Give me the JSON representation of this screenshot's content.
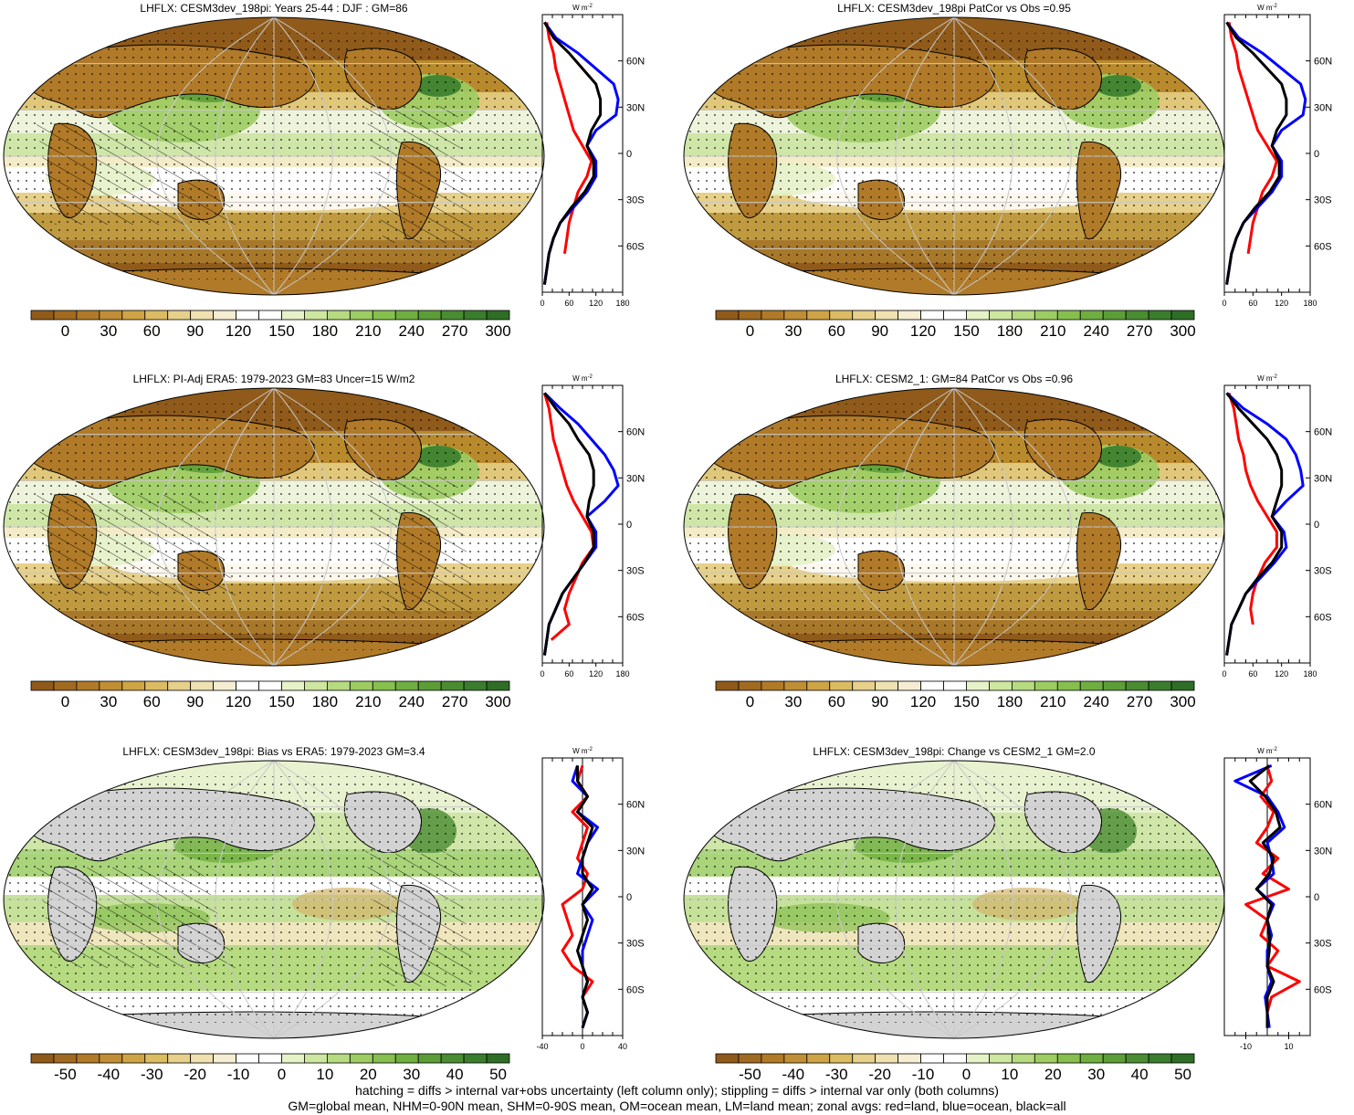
{
  "colors": {
    "brown_dark": "#8f5a1a",
    "brown_mid": "#b98a2c",
    "tan_light": "#eadca0",
    "white": "#ffffff",
    "green_light": "#b9df7e",
    "green_mid": "#7fbd45",
    "green_dark": "#2e7d2a",
    "land_gray": "#d3d3d3",
    "land_line": "red",
    "ocean_line": "blue",
    "all_line": "black"
  },
  "lat_labels": [
    "60N",
    "30N",
    "0",
    "30S",
    "60S"
  ],
  "unit_label": "W m",
  "unit_exp": "-2",
  "panels": [
    {
      "id": "model",
      "title": "LHFLX: CESM3dev_198pi: Years 25-44 : DJF : GM=86",
      "kind": "abs",
      "hatched": true,
      "colorbar_ticks": [
        "0",
        "30",
        "60",
        "90",
        "120",
        "150",
        "180",
        "210",
        "240",
        "270",
        "300"
      ],
      "zonal_ticks": [
        "0",
        "60",
        "120",
        "180"
      ]
    },
    {
      "id": "model-patcor",
      "title": "LHFLX: CESM3dev_198pi PatCor vs Obs =0.95",
      "kind": "abs",
      "hatched": false,
      "colorbar_ticks": [
        "0",
        "30",
        "60",
        "90",
        "120",
        "150",
        "180",
        "210",
        "240",
        "270",
        "300"
      ],
      "zonal_ticks": [
        "0",
        "60",
        "120",
        "180"
      ]
    },
    {
      "id": "obs",
      "title": "LHFLX: PI-Adj ERA5: 1979-2023 GM=83 Uncer=15 W/m2",
      "kind": "abs",
      "hatched": true,
      "colorbar_ticks": [
        "0",
        "30",
        "60",
        "90",
        "120",
        "150",
        "180",
        "210",
        "240",
        "270",
        "300"
      ],
      "zonal_ticks": [
        "0",
        "60",
        "120",
        "180"
      ]
    },
    {
      "id": "cesm2",
      "title": "LHFLX: CESM2_1: GM=84 PatCor vs Obs =0.96",
      "kind": "abs",
      "hatched": false,
      "colorbar_ticks": [
        "0",
        "30",
        "60",
        "90",
        "120",
        "150",
        "180",
        "210",
        "240",
        "270",
        "300"
      ],
      "zonal_ticks": [
        "0",
        "60",
        "120",
        "180"
      ]
    },
    {
      "id": "bias",
      "title": "LHFLX: CESM3dev_198pi: Bias vs ERA5: 1979-2023 GM=3.4",
      "kind": "diff",
      "hatched": true,
      "colorbar_ticks": [
        "-50",
        "-40",
        "-30",
        "-20",
        "-10",
        "0",
        "10",
        "20",
        "30",
        "40",
        "50"
      ],
      "zonal_ticks": [
        "-40",
        "0",
        "40"
      ]
    },
    {
      "id": "change",
      "title": "LHFLX: CESM3dev_198pi: Change vs CESM2_1 GM=2.0",
      "kind": "diff",
      "hatched": false,
      "colorbar_ticks": [
        "-50",
        "-40",
        "-30",
        "-20",
        "-10",
        "0",
        "10",
        "20",
        "30",
        "40",
        "50"
      ],
      "zonal_ticks": [
        "-10",
        "10"
      ]
    }
  ],
  "chart_data": [
    {
      "type": "line",
      "panel": "model",
      "xlim": [
        0,
        180
      ],
      "y_lat": [
        85,
        75,
        65,
        55,
        45,
        35,
        25,
        15,
        5,
        -5,
        -15,
        -25,
        -35,
        -45,
        -55,
        -65,
        -75,
        -85
      ],
      "series": [
        {
          "color": "red",
          "values": [
            10,
            15,
            25,
            30,
            40,
            50,
            60,
            70,
            90,
            110,
            100,
            80,
            70,
            60,
            55,
            50,
            null,
            null
          ]
        },
        {
          "color": "blue",
          "values": [
            5,
            30,
            80,
            120,
            160,
            170,
            165,
            120,
            100,
            120,
            120,
            100,
            70,
            40,
            25,
            15,
            10,
            5
          ]
        },
        {
          "color": "black",
          "values": [
            5,
            25,
            60,
            90,
            120,
            130,
            130,
            110,
            100,
            115,
            115,
            95,
            65,
            40,
            25,
            15,
            10,
            5
          ]
        }
      ]
    },
    {
      "type": "line",
      "panel": "model-patcor",
      "xlim": [
        0,
        180
      ],
      "y_lat": [
        85,
        75,
        65,
        55,
        45,
        35,
        25,
        15,
        5,
        -5,
        -15,
        -25,
        -35,
        -45,
        -55,
        -65,
        -75,
        -85
      ],
      "series": [
        {
          "color": "red",
          "values": [
            10,
            15,
            25,
            30,
            40,
            50,
            60,
            70,
            90,
            110,
            100,
            80,
            70,
            60,
            55,
            50,
            null,
            null
          ]
        },
        {
          "color": "blue",
          "values": [
            5,
            30,
            80,
            120,
            160,
            170,
            165,
            120,
            100,
            120,
            120,
            100,
            70,
            40,
            25,
            15,
            10,
            5
          ]
        },
        {
          "color": "black",
          "values": [
            5,
            25,
            60,
            90,
            120,
            130,
            130,
            110,
            100,
            115,
            115,
            95,
            65,
            40,
            25,
            15,
            10,
            5
          ]
        }
      ]
    },
    {
      "type": "line",
      "panel": "obs",
      "xlim": [
        0,
        180
      ],
      "y_lat": [
        85,
        75,
        65,
        55,
        45,
        35,
        25,
        15,
        5,
        -5,
        -15,
        -25,
        -35,
        -45,
        -55,
        -65,
        -75,
        -85
      ],
      "series": [
        {
          "color": "red",
          "values": [
            5,
            15,
            20,
            25,
            35,
            45,
            55,
            70,
            90,
            110,
            115,
            90,
            75,
            60,
            50,
            60,
            20,
            null
          ]
        },
        {
          "color": "blue",
          "values": [
            5,
            40,
            80,
            110,
            140,
            160,
            170,
            140,
            100,
            120,
            120,
            95,
            70,
            45,
            30,
            15,
            10,
            5
          ]
        },
        {
          "color": "black",
          "values": [
            5,
            30,
            60,
            80,
            105,
            115,
            115,
            105,
            100,
            115,
            115,
            95,
            70,
            45,
            30,
            15,
            10,
            5
          ]
        }
      ]
    },
    {
      "type": "line",
      "panel": "cesm2",
      "xlim": [
        0,
        180
      ],
      "y_lat": [
        85,
        75,
        65,
        55,
        45,
        35,
        25,
        15,
        5,
        -5,
        -15,
        -25,
        -35,
        -45,
        -55,
        -65,
        -75,
        -85
      ],
      "series": [
        {
          "color": "red",
          "values": [
            10,
            20,
            25,
            30,
            40,
            45,
            55,
            70,
            90,
            110,
            110,
            85,
            70,
            60,
            55,
            60,
            null,
            null
          ]
        },
        {
          "color": "blue",
          "values": [
            5,
            40,
            90,
            130,
            150,
            160,
            165,
            130,
            100,
            125,
            130,
            105,
            75,
            45,
            30,
            15,
            10,
            5
          ]
        },
        {
          "color": "black",
          "values": [
            5,
            30,
            60,
            90,
            110,
            120,
            120,
            110,
            100,
            120,
            120,
            100,
            70,
            45,
            30,
            15,
            10,
            5
          ]
        }
      ]
    },
    {
      "type": "line",
      "panel": "bias",
      "xlim": [
        -40,
        40
      ],
      "y_lat": [
        85,
        75,
        65,
        55,
        45,
        35,
        25,
        15,
        5,
        -5,
        -15,
        -25,
        -35,
        -45,
        -55,
        -65,
        -75,
        -85
      ],
      "series": [
        {
          "color": "red",
          "values": [
            0,
            -5,
            5,
            -10,
            5,
            0,
            -5,
            5,
            0,
            -20,
            -15,
            -10,
            -20,
            -10,
            10,
            0,
            5,
            null
          ]
        },
        {
          "color": "blue",
          "values": [
            -5,
            -10,
            5,
            -5,
            15,
            5,
            0,
            -5,
            15,
            0,
            10,
            5,
            0,
            0,
            5,
            0,
            5,
            0
          ]
        },
        {
          "color": "black",
          "values": [
            -5,
            -5,
            5,
            -5,
            10,
            5,
            0,
            0,
            10,
            0,
            5,
            0,
            -5,
            0,
            5,
            0,
            5,
            0
          ]
        }
      ]
    },
    {
      "type": "line",
      "panel": "change",
      "xlim": [
        -20,
        20
      ],
      "y_lat": [
        85,
        75,
        65,
        55,
        45,
        35,
        25,
        15,
        5,
        -5,
        -15,
        -25,
        -35,
        -45,
        -55,
        -65,
        -75,
        -85
      ],
      "series": [
        {
          "color": "red",
          "values": [
            0,
            2,
            -3,
            3,
            0,
            -5,
            5,
            -2,
            10,
            -10,
            0,
            -3,
            5,
            0,
            15,
            2,
            0,
            null
          ]
        },
        {
          "color": "blue",
          "values": [
            2,
            -15,
            0,
            5,
            8,
            0,
            2,
            3,
            -5,
            3,
            0,
            2,
            0,
            0,
            2,
            -1,
            0,
            1
          ]
        },
        {
          "color": "black",
          "values": [
            1,
            -8,
            -1,
            4,
            6,
            -2,
            3,
            1,
            -5,
            2,
            0,
            1,
            1,
            0,
            3,
            0,
            0,
            0
          ]
        }
      ]
    }
  ],
  "footer": {
    "line1": "hatching = diffs > internal var+obs uncertainty (left column only); stippling = diffs > internal var only (both columns)",
    "line2": "GM=global mean, NHM=0-90N mean, SHM=0-90S mean, OM=ocean mean, LM=land mean; zonal avgs: red=land, blue=ocean, black=all"
  }
}
